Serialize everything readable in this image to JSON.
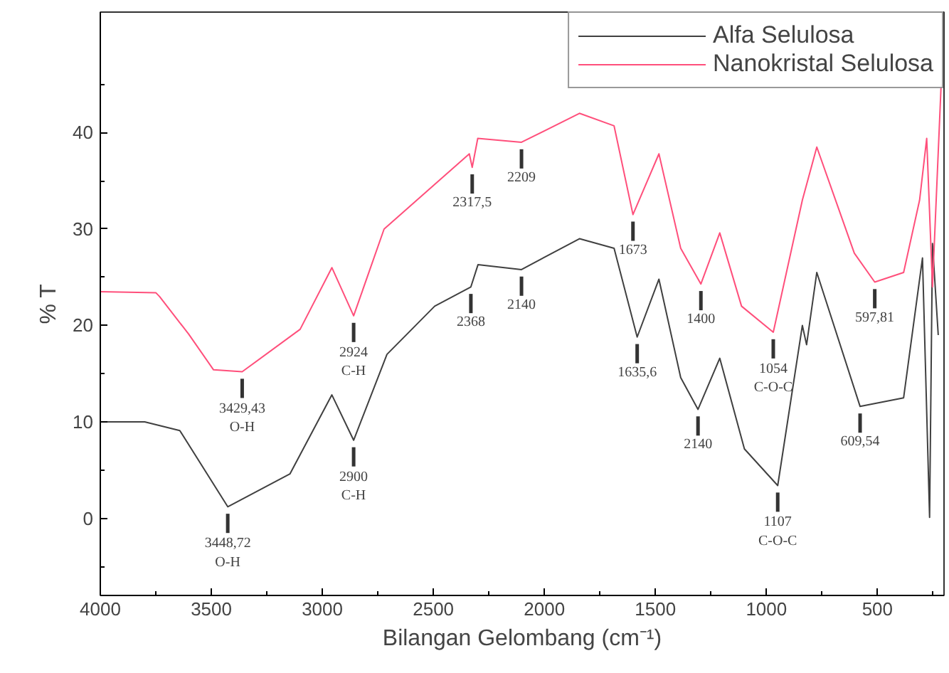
{
  "chart_data": {
    "type": "line",
    "xlabel": "Bilangan Gelombang (cm⁻¹)",
    "ylabel": "% T",
    "xlim": [
      4000,
      200
    ],
    "ylim": [
      -8,
      52.5
    ],
    "xticks": [
      4000,
      {
        "value": 3750,
        "label": null
      },
      3500,
      {
        "value": 3250,
        "label": null
      },
      3000,
      {
        "value": 2750,
        "label": null
      },
      2500,
      {
        "value": 2250,
        "label": null
      },
      2000,
      {
        "value": 1750,
        "label": null
      },
      1500,
      {
        "value": 1250,
        "label": null
      },
      1000,
      {
        "value": 750,
        "label": null
      },
      500,
      {
        "value": 250,
        "label": null
      }
    ],
    "yticks": [
      {
        "value": -5,
        "label": null
      },
      0,
      {
        "value": 5,
        "label": null
      },
      10,
      {
        "value": 15,
        "label": null
      },
      20,
      {
        "value": 25,
        "label": null
      },
      30,
      {
        "value": 35,
        "label": null
      },
      40,
      {
        "value": 45,
        "label": null
      }
    ],
    "grid": false,
    "legend": "top right",
    "marker": "none",
    "line_style": "solid",
    "series": [
      {
        "name": "Alfa Selulosa",
        "color": "#404040",
        "x": [
          4000,
          3800,
          3642,
          3426,
          3146,
          2957,
          2859,
          2709,
          2494,
          2331,
          2299,
          2103,
          1842,
          1686,
          1582,
          1484,
          1386,
          1308,
          1210,
          1099,
          949,
          838,
          819,
          773,
          578,
          382,
          297,
          265,
          252,
          226
        ],
        "values": [
          10,
          10,
          9.1,
          1.2,
          4.6,
          12.8,
          8.1,
          17,
          22,
          24,
          26.3,
          25.8,
          29,
          28,
          18.8,
          24.8,
          14.6,
          11.3,
          16.6,
          7.2,
          3.4,
          20,
          18,
          25.5,
          11.6,
          12.5,
          27,
          0.1,
          28.5,
          19
        ]
      },
      {
        "name": "Nanokristal Selulosa",
        "color": "#ff4f7b",
        "x": [
          4000,
          3750,
          3733,
          3602,
          3490,
          3361,
          3100,
          2957,
          2859,
          2722,
          2338,
          2325,
          2300,
          2103,
          1842,
          1686,
          1601,
          1484,
          1386,
          1295,
          1210,
          1112,
          969,
          838,
          773,
          604,
          512,
          382,
          310,
          278,
          252,
          213
        ],
        "values": [
          23.5,
          23.4,
          23,
          19.1,
          15.4,
          15.2,
          19.6,
          26,
          21,
          30,
          37.8,
          36.4,
          39.4,
          39,
          42,
          40.7,
          31.5,
          37.8,
          28,
          24.3,
          29.6,
          22,
          19.3,
          33,
          38.5,
          27.5,
          24.5,
          25.5,
          33,
          39.4,
          24,
          45
        ]
      }
    ],
    "annotations": [
      {
        "text": "3429,43\nO-H",
        "x": 3361,
        "y": 15.2
      },
      {
        "text": "2924\nC-H",
        "x": 2859,
        "y": 21
      },
      {
        "text": "2317,5",
        "x": 2325,
        "y": 36.4
      },
      {
        "text": "2209",
        "x": 2103,
        "y": 39
      },
      {
        "text": "1673",
        "x": 1601,
        "y": 31.5
      },
      {
        "text": "1400",
        "x": 1295,
        "y": 24.3
      },
      {
        "text": "1054\nC-O-C",
        "x": 969,
        "y": 19.3
      },
      {
        "text": "597,81",
        "x": 512,
        "y": 24.5
      },
      {
        "text": "3448,72\nO-H",
        "x": 3426,
        "y": 1.2
      },
      {
        "text": "2900\nC-H",
        "x": 2859,
        "y": 8.1
      },
      {
        "text": "2368",
        "x": 2331,
        "y": 24
      },
      {
        "text": "2140",
        "x": 2103,
        "y": 25.8
      },
      {
        "text": "1635,6",
        "x": 1582,
        "y": 18.8
      },
      {
        "text": "2140",
        "x": 1308,
        "y": 11.3
      },
      {
        "text": "1107\nC-O-C",
        "x": 949,
        "y": 3.4
      },
      {
        "text": "609,54",
        "x": 578,
        "y": 11.6
      }
    ]
  }
}
